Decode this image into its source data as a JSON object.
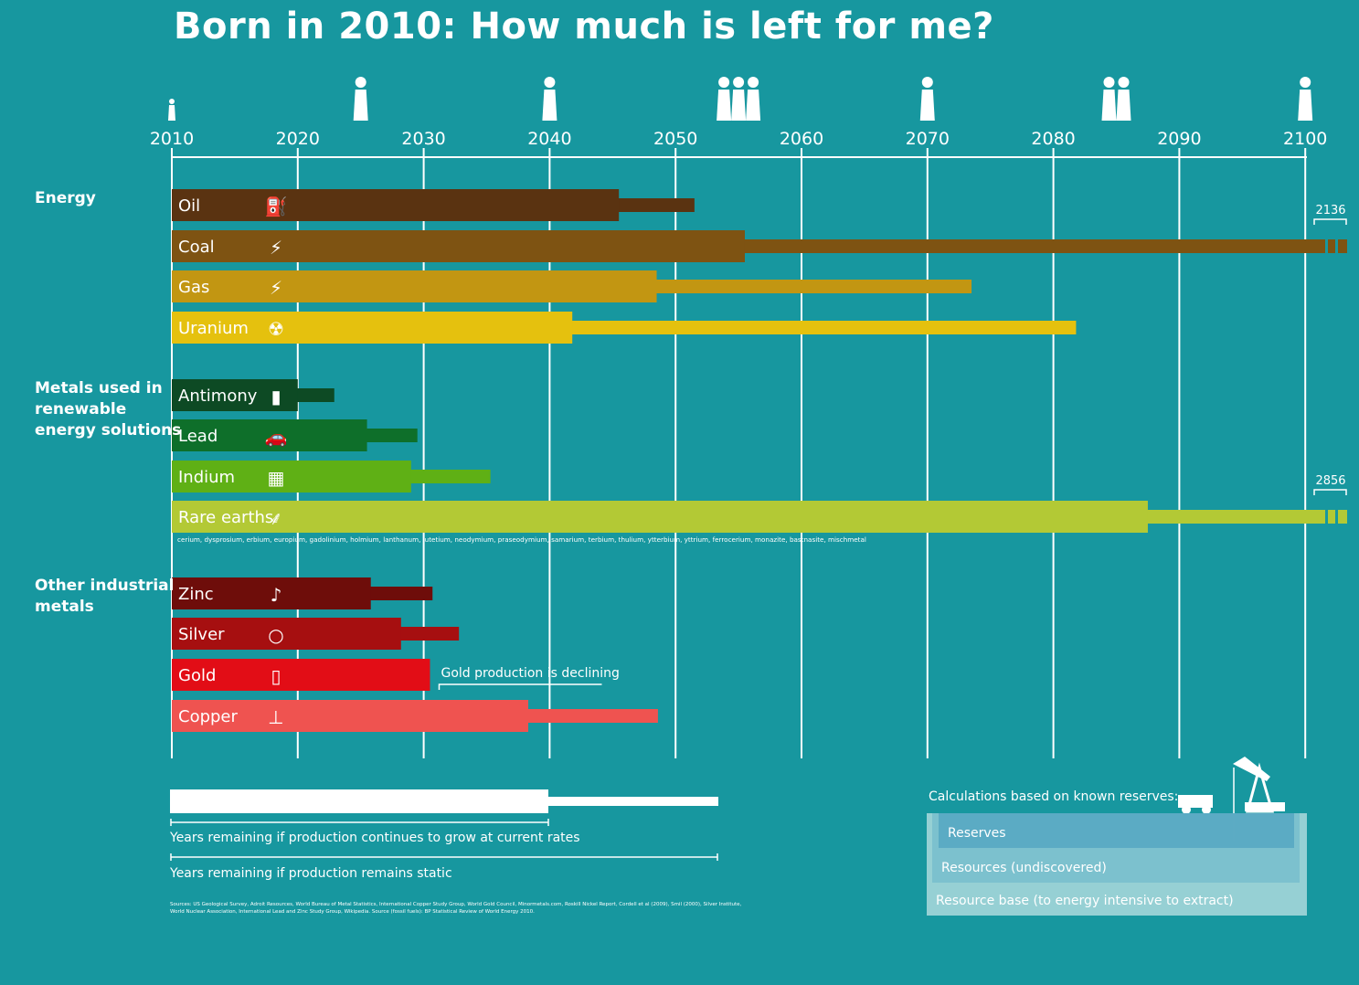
{
  "title": "Born in 2010: How much is left for me?",
  "categories": [
    {
      "label": "Energy"
    },
    {
      "label": "Metals used in\nrenewable\nenergy solutions"
    },
    {
      "label": "Other industrial\nmetals"
    }
  ],
  "chart_data": {
    "type": "bar",
    "orientation": "horizontal",
    "x_axis_ticks": [
      2010,
      2020,
      2030,
      2040,
      2050,
      2060,
      2070,
      2080,
      2090,
      2100
    ],
    "xlim": [
      2010,
      2100
    ],
    "series": [
      {
        "name": "Years remaining if production continues to grow at current rates"
      },
      {
        "name": "Years remaining if production remains static"
      }
    ],
    "items": [
      {
        "label": "Oil",
        "group": "Energy",
        "icon": "fuel-pump-icon",
        "color": "#5a3311",
        "grow_end": 2045.5,
        "static_end": 2051.5
      },
      {
        "label": "Coal",
        "group": "Energy",
        "icon": "lightning-icon",
        "color": "#7e5312",
        "grow_end": 2055.5,
        "static_end": 2136,
        "static_label": "2136"
      },
      {
        "label": "Gas",
        "group": "Energy",
        "icon": "lightning-icon",
        "color": "#c29612",
        "grow_end": 2048.5,
        "static_end": 2073.5
      },
      {
        "label": "Uranium",
        "group": "Energy",
        "icon": "radiation-icon",
        "color": "#e5c10e",
        "grow_end": 2041.8,
        "static_end": 2081.8
      },
      {
        "label": "Antimony",
        "group": "Metals used in renewable energy solutions",
        "icon": "battery-icon",
        "color": "#0d4a24",
        "grow_end": 2020,
        "static_end": 2022.9
      },
      {
        "label": "Lead",
        "group": "Metals used in renewable energy solutions",
        "icon": "car-icon",
        "color": "#0e6f2a",
        "grow_end": 2025.5,
        "static_end": 2029.5
      },
      {
        "label": "Indium",
        "group": "Metals used in renewable energy solutions",
        "icon": "solar-panel-icon",
        "color": "#5fb015",
        "grow_end": 2029,
        "static_end": 2035.3
      },
      {
        "label": "Rare earths",
        "group": "Metals used in renewable energy solutions",
        "icon": "wind-turbine-icon",
        "color": "#b3c935",
        "grow_end": 2087.5,
        "static_end": 2856,
        "static_label": "2856",
        "note": "cerium, dysprosium, erbium, europium, gadolinium, holmium, lanthanum, lutetium, neodymium, praseodymium, samarium, terbium, thulium, ytterbium, yttrium, ferrocerium, monazite, bastnasite, mischmetal"
      },
      {
        "label": "Zinc",
        "group": "Other industrial metals",
        "icon": "saxophone-icon",
        "color": "#6e0d0a",
        "grow_end": 2025.8,
        "static_end": 2030.7
      },
      {
        "label": "Silver",
        "group": "Other industrial metals",
        "icon": "ring-icon",
        "color": "#a60f10",
        "grow_end": 2028.2,
        "static_end": 2032.8
      },
      {
        "label": "Gold",
        "group": "Other industrial metals",
        "icon": "phone-icon",
        "color": "#e20d16",
        "grow_end": 2030.5,
        "static_end": 2030.5,
        "annotation": "Gold production is declining"
      },
      {
        "label": "Copper",
        "group": "Other industrial metals",
        "icon": "faucet-icon",
        "color": "#ef5350",
        "grow_end": 2038.3,
        "static_end": 2048.6
      }
    ],
    "life_stage_icons": [
      {
        "year": 2010,
        "icon": "baby-icon"
      },
      {
        "year": 2025,
        "icon": "child-jumping-icon"
      },
      {
        "year": 2040,
        "icon": "bride-icon"
      },
      {
        "year": 2055,
        "icon": "family-icon"
      },
      {
        "year": 2070,
        "icon": "grandparent-icon"
      },
      {
        "year": 2085,
        "icon": "elderly-couple-icon"
      },
      {
        "year": 2100,
        "icon": "wheelchair-icon"
      }
    ]
  },
  "legend": {
    "grow_label": "Years remaining if production continues to grow at current rates",
    "static_label": "Years remaining if production remains static"
  },
  "sources": "Sources: US Geological Survey, Adroit Resources, World Bureau of Metal Statistics, International Copper Study Group, World Gold Council, Minormetals.com, Roskill Nickel Report, Cordell et al (2009), Smil (2000), Silver Institute, World Nuclear Association, International Lead and Zinc Study Group, Wikipedia. Source (fossil fuels): BP Statistical Review of World Energy 2010.",
  "reserves_box": {
    "title": "Calculations based on known reserves:",
    "reserves": "Reserves",
    "resources": "Resources (undiscovered)",
    "resource_base": "Resource base (to energy intensive to extract)",
    "icons": [
      "mining-truck-icon",
      "oil-pump-icon"
    ]
  }
}
